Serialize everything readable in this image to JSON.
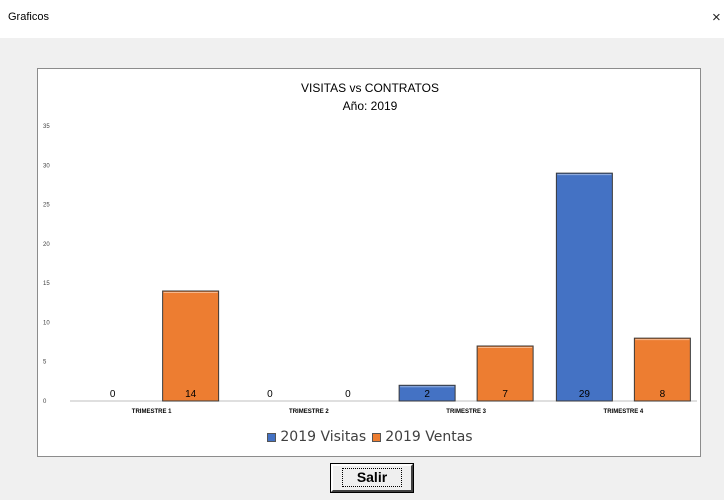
{
  "window": {
    "title": "Graficos",
    "close_glyph": "×"
  },
  "button": {
    "salir_label": "Salir"
  },
  "colors": {
    "visitas": "#4472c4",
    "ventas": "#ed7d31"
  },
  "chart_data": {
    "type": "bar",
    "title": "VISITAS vs CONTRATOS",
    "subtitle": "Año: 2019",
    "categories": [
      "TRIMESTRE 1",
      "TRIMESTRE 2",
      "TRIMESTRE 3",
      "TRIMESTRE 4"
    ],
    "series": [
      {
        "name": "2019 Visitas",
        "values": [
          0,
          0,
          2,
          29
        ]
      },
      {
        "name": "2019 Ventas",
        "values": [
          14,
          0,
          7,
          8
        ]
      }
    ],
    "ylim": [
      0,
      35
    ],
    "yticks": [
      0,
      5,
      10,
      15,
      20,
      25,
      30,
      35
    ],
    "grid": false,
    "legend_position": "bottom",
    "data_labels": true
  }
}
